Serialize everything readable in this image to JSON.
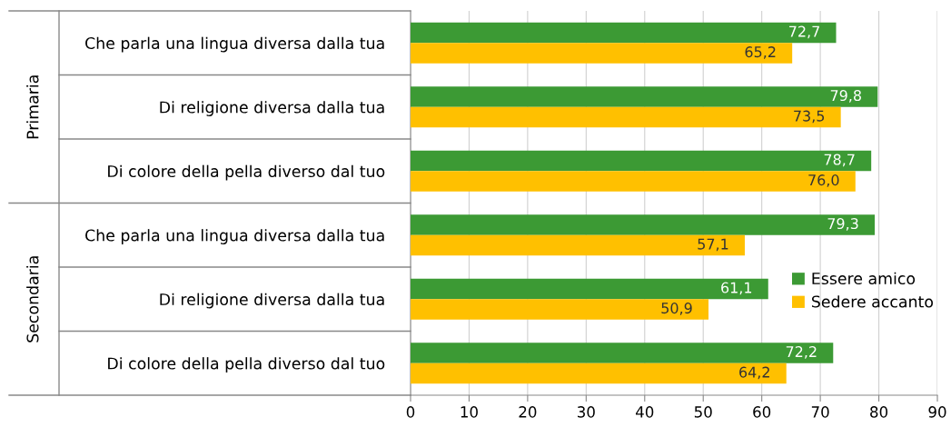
{
  "chart_data": {
    "type": "bar",
    "orientation": "horizontal",
    "categories": [
      "Che parla una lingua diversa dalla tua",
      "Di religione diversa dalla tua",
      "Di colore della pella diverso dal tuo",
      "Che parla una lingua diversa dalla tua",
      "Di religione diversa dalla tua",
      "Di colore della pella diverso dal tuo"
    ],
    "series": [
      {
        "name": "Essere amico",
        "color": "#3c9a34",
        "values": [
          72.7,
          79.8,
          78.7,
          79.3,
          61.1,
          72.2
        ],
        "value_labels": [
          "72,7",
          "79,8",
          "78,7",
          "79,3",
          "61,1",
          "72,2"
        ]
      },
      {
        "name": "Sedere accanto",
        "color": "#ffc000",
        "values": [
          65.2,
          73.5,
          76.0,
          57.1,
          50.9,
          64.2
        ],
        "value_labels": [
          "65,2",
          "73,5",
          "76,0",
          "57,1",
          "50,9",
          "64,2"
        ]
      }
    ],
    "annotations": [
      "Primaria",
      "Secondaria"
    ],
    "xlim": [
      0,
      90
    ],
    "xticks": [
      0,
      10,
      20,
      30,
      40,
      50,
      60,
      70,
      80,
      90
    ],
    "grid": "x",
    "legend": "right"
  }
}
